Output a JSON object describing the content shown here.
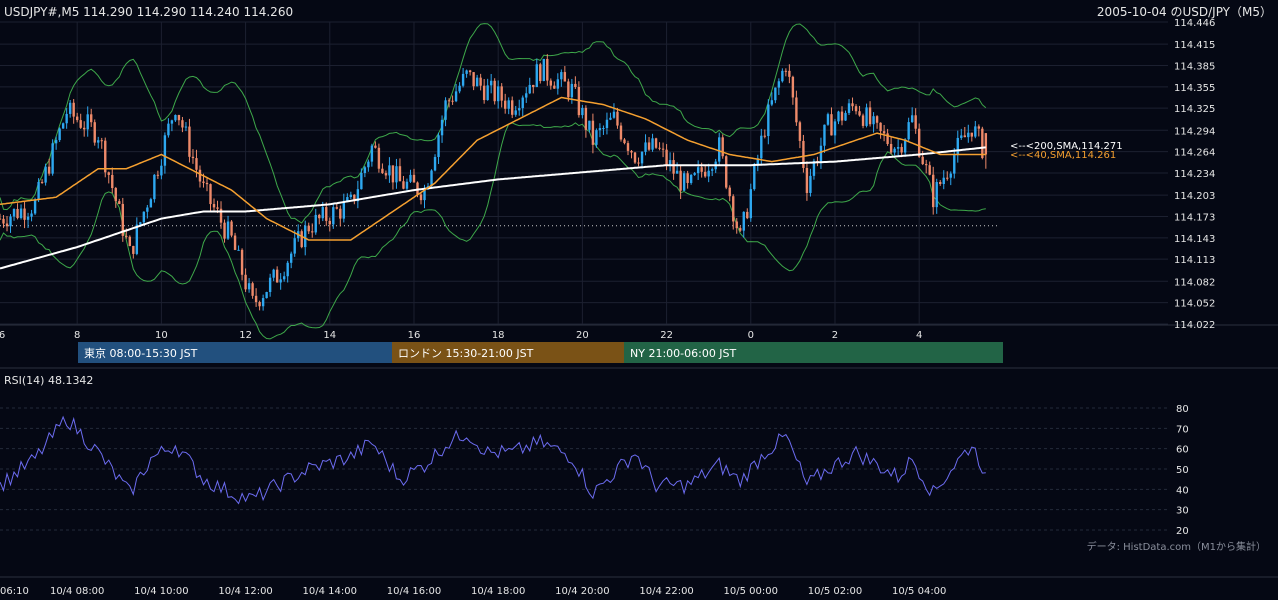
{
  "header": {
    "symbol_line": "USDJPY#,M5 114.290 114.290 114.240 114.260",
    "title": "2005-10-04 のUSD/JPY（M5）"
  },
  "price_axis": {
    "ticks": [
      "114.446",
      "114.415",
      "114.385",
      "114.355",
      "114.325",
      "114.294",
      "114.264",
      "114.234",
      "114.203",
      "114.173",
      "114.143",
      "114.113",
      "114.082",
      "114.052",
      "114.022"
    ],
    "ylim": [
      114.022,
      114.446
    ]
  },
  "time_axis_top": {
    "ticks": [
      "6",
      "8",
      "10",
      "12",
      "14",
      "16",
      "18",
      "20",
      "22",
      "0",
      "2",
      "4"
    ]
  },
  "sessions": [
    {
      "label": "東京 08:00-15:30 JST",
      "color": "#22507e"
    },
    {
      "label": "ロンドン 15:30-21:00 JST",
      "color": "#7a5216"
    },
    {
      "label": "NY 21:00-06:00 JST",
      "color": "#226446"
    }
  ],
  "ma_labels": {
    "sma200": "<--<200,SMA,114.271",
    "sma40": "<--<40,SMA,114.261"
  },
  "rsi": {
    "title": "RSI(14) 48.1342",
    "ticks": [
      "80",
      "70",
      "60",
      "50",
      "40",
      "30",
      "20"
    ]
  },
  "credit": "データ: HistData.com（M1から集計）",
  "time_axis_bottom": {
    "ticks": [
      "06:10",
      "10/4 08:00",
      "10/4 10:00",
      "10/4 12:00",
      "10/4 14:00",
      "10/4 16:00",
      "10/4 18:00",
      "10/4 20:00",
      "10/4 22:00",
      "10/5 00:00",
      "10/5 02:00",
      "10/5 04:00"
    ]
  },
  "colors": {
    "background": "#050814",
    "bull": "#2ea8f0",
    "bear": "#ee8a6a",
    "sma40": "#f5a030",
    "sma200": "#ffffff",
    "bollinger": "#3ea84a",
    "rsi_line": "#6c6cf0",
    "grid": "#1c2030"
  },
  "chart_data": {
    "type": "candlestick",
    "title": "2005-10-04 のUSD/JPY（M5）",
    "interval": "M5",
    "last_bar": {
      "open": 114.29,
      "high": 114.29,
      "low": 114.24,
      "close": 114.26
    },
    "ylim": [
      114.022,
      114.446
    ],
    "close_keypoints": {
      "time": [
        "06:10",
        "07:00",
        "07:45",
        "08:30",
        "09:15",
        "09:45",
        "10:20",
        "11:00",
        "11:40",
        "12:10",
        "12:45",
        "13:30",
        "14:30",
        "15:00",
        "15:40",
        "16:15",
        "16:45",
        "17:15",
        "17:45",
        "18:20",
        "19:00",
        "19:45",
        "20:15",
        "20:45",
        "21:15",
        "21:45",
        "22:30",
        "23:15",
        "23:45",
        "00:20",
        "00:50",
        "01:20",
        "01:50",
        "02:30",
        "03:00",
        "03:30",
        "03:50",
        "04:20",
        "04:50",
        "05:15",
        "05:35"
      ],
      "close": [
        114.17,
        114.19,
        114.32,
        114.29,
        114.12,
        114.21,
        114.33,
        114.21,
        114.14,
        114.05,
        114.09,
        114.16,
        114.19,
        114.27,
        114.22,
        114.21,
        114.33,
        114.37,
        114.35,
        114.33,
        114.38,
        114.35,
        114.28,
        114.31,
        114.26,
        114.27,
        114.21,
        114.27,
        114.14,
        114.3,
        114.39,
        114.22,
        114.3,
        114.33,
        114.29,
        114.27,
        114.31,
        114.2,
        114.26,
        114.3,
        114.26
      ]
    },
    "sma40_keypoints": {
      "time": [
        "06:10",
        "07:30",
        "08:30",
        "09:10",
        "10:00",
        "10:40",
        "11:40",
        "12:30",
        "13:30",
        "14:30",
        "15:30",
        "16:30",
        "17:30",
        "18:30",
        "19:30",
        "20:30",
        "21:30",
        "22:30",
        "23:30",
        "00:30",
        "01:30",
        "02:30",
        "03:00",
        "03:40",
        "04:30",
        "05:35"
      ],
      "value": [
        114.19,
        114.2,
        114.24,
        114.24,
        114.26,
        114.24,
        114.21,
        114.17,
        114.14,
        114.14,
        114.18,
        114.22,
        114.28,
        114.31,
        114.34,
        114.33,
        114.31,
        114.28,
        114.26,
        114.25,
        114.26,
        114.28,
        114.29,
        114.28,
        114.26,
        114.26
      ]
    },
    "sma200_keypoints": {
      "time": [
        "06:10",
        "08:00",
        "10:00",
        "11:00",
        "12:00",
        "13:00",
        "14:00",
        "16:00",
        "18:00",
        "20:00",
        "22:00",
        "00:00",
        "02:00",
        "04:00",
        "05:35"
      ],
      "value": [
        114.1,
        114.13,
        114.17,
        114.18,
        114.18,
        114.185,
        114.19,
        114.21,
        114.225,
        114.235,
        114.245,
        114.245,
        114.25,
        114.26,
        114.27
      ]
    },
    "reference_line": 114.16,
    "rsi_keypoints": {
      "time": [
        "06:10",
        "07:00",
        "07:45",
        "08:30",
        "09:15",
        "09:45",
        "10:20",
        "11:00",
        "11:40",
        "12:10",
        "12:45",
        "13:30",
        "14:30",
        "15:00",
        "15:40",
        "16:15",
        "16:45",
        "17:15",
        "17:45",
        "18:20",
        "19:00",
        "19:45",
        "20:15",
        "20:45",
        "21:15",
        "21:45",
        "22:30",
        "23:15",
        "23:45",
        "00:20",
        "00:50",
        "01:20",
        "01:50",
        "02:30",
        "03:00",
        "03:30",
        "03:50",
        "04:20",
        "04:50",
        "05:15",
        "05:35"
      ],
      "value": [
        42,
        55,
        75,
        58,
        38,
        55,
        62,
        45,
        38,
        35,
        42,
        50,
        56,
        63,
        45,
        52,
        62,
        68,
        58,
        58,
        63,
        56,
        38,
        48,
        58,
        42,
        42,
        52,
        44,
        58,
        66,
        42,
        50,
        58,
        52,
        46,
        55,
        38,
        52,
        62,
        48
      ]
    },
    "rsi_ylim": [
      20,
      80
    ]
  }
}
